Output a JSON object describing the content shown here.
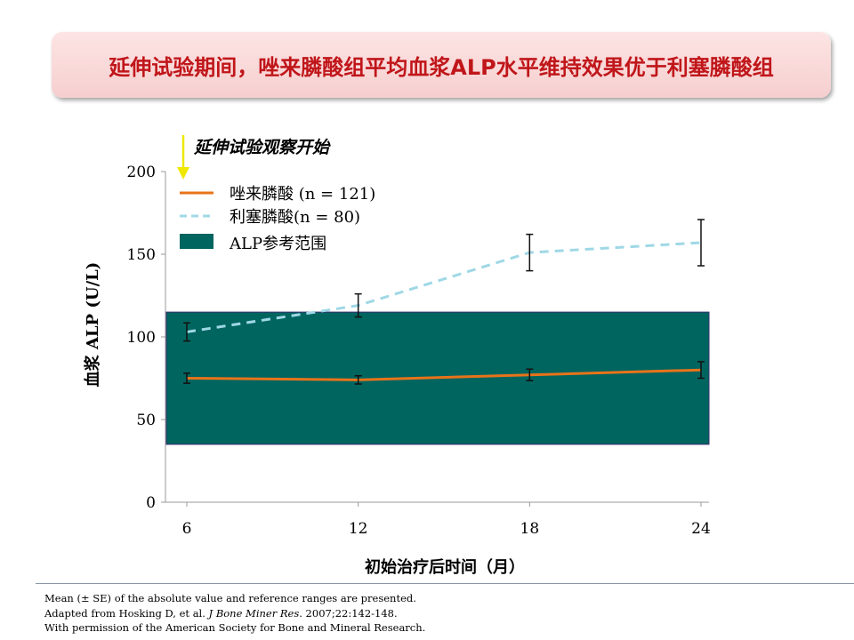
{
  "title": "延伸试验期间，唑来膦酸组平均血浆ALP水平维持效果优于利塞膦酸组",
  "annotation": "延伸试验观察开始",
  "chart_data": {
    "type": "line",
    "xlabel": "初始治疗后时间（月）",
    "ylabel": "血浆 ALP (U/L)",
    "x": [
      6,
      12,
      18,
      24
    ],
    "xticks": [
      "6",
      "12",
      "18",
      "24"
    ],
    "yticks": [
      "0",
      "50",
      "100",
      "150",
      "200"
    ],
    "ylim": [
      0,
      200
    ],
    "series": [
      {
        "name": "唑来膦酸 (n = 121)",
        "values": [
          75,
          74,
          77,
          80
        ],
        "se": [
          3,
          2.5,
          3.5,
          5
        ],
        "color": "#e8731a",
        "style": "solid"
      },
      {
        "name": "利塞膦酸(n = 80)",
        "values": [
          103,
          119,
          151,
          157
        ],
        "se": [
          5.5,
          7,
          11,
          14
        ],
        "color": "#9fd8e6",
        "style": "dashed"
      }
    ],
    "reference_band": {
      "name": "ALP参考范围",
      "range": [
        35,
        115
      ],
      "color": "#00655f"
    },
    "legend": "top-left"
  },
  "footnotes": [
    "Mean (± SE) of the absolute value and reference ranges are presented.",
    "Adapted from Hosking D, et al. ",
    "J Bone Miner Res",
    ". 2007;22:142-148.",
    "With permission of the American Society for Bone and Mineral Research."
  ]
}
